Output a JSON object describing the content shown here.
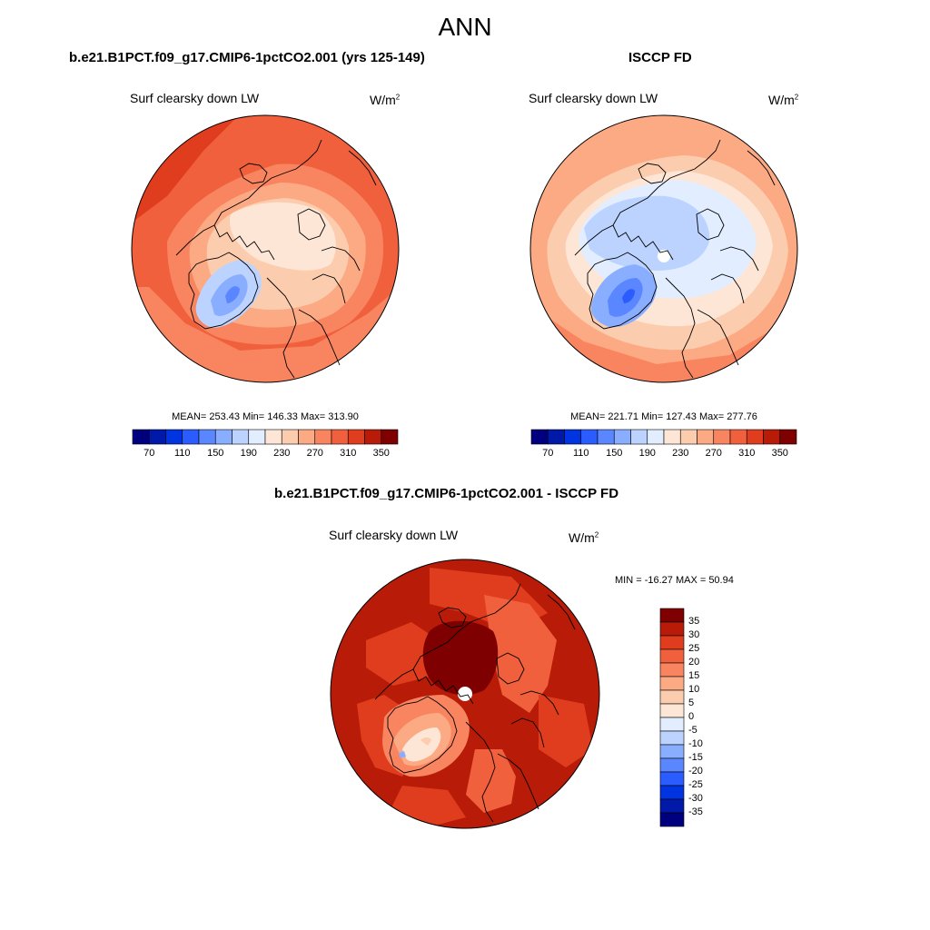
{
  "title": "ANN",
  "panels": [
    {
      "id": "model",
      "title": "b.e21.B1PCT.f09_g17.CMIP6-1pctCO2.001 (yrs 125-149)",
      "variable": "Surf clearsky down LW",
      "units_base": "W/m",
      "units_exp": "2",
      "stats": "MEAN= 253.43  Min= 146.33  Max= 313.90"
    },
    {
      "id": "obs",
      "title": "ISCCP FD",
      "variable": "Surf clearsky down LW",
      "units_base": "W/m",
      "units_exp": "2",
      "stats": "MEAN= 221.71  Min= 127.43  Max= 277.76"
    }
  ],
  "colorbar_abs": {
    "tick_labels": [
      "70",
      "110",
      "150",
      "190",
      "230",
      "270",
      "310",
      "350"
    ],
    "colors": [
      "#00007f",
      "#0019a8",
      "#0034e0",
      "#2a5cff",
      "#5a86ff",
      "#8aaeff",
      "#bcd3ff",
      "#e2eeff",
      "#fde6d6",
      "#fcccae",
      "#fcaa84",
      "#f98560",
      "#f0603c",
      "#e03d1e",
      "#b81c08",
      "#7f0000"
    ]
  },
  "diff_panel": {
    "title": "b.e21.B1PCT.f09_g17.CMIP6-1pctCO2.001 - ISCCP FD",
    "variable": "Surf clearsky down LW",
    "units_base": "W/m",
    "units_exp": "2",
    "minmax": "MIN = -16.27 MAX =  50.94"
  },
  "colorbar_diff": {
    "tick_labels": [
      "35",
      "30",
      "25",
      "20",
      "15",
      "10",
      "5",
      "0",
      "-5",
      "-10",
      "-15",
      "-20",
      "-25",
      "-30",
      "-35"
    ],
    "colors": [
      "#7f0000",
      "#b81c08",
      "#e03d1e",
      "#f0603c",
      "#f98560",
      "#fcaa84",
      "#fcccae",
      "#fde6d6",
      "#e2eeff",
      "#bcd3ff",
      "#8aaeff",
      "#5a86ff",
      "#2a5cff",
      "#0034e0",
      "#0019a8",
      "#00007f"
    ]
  }
}
